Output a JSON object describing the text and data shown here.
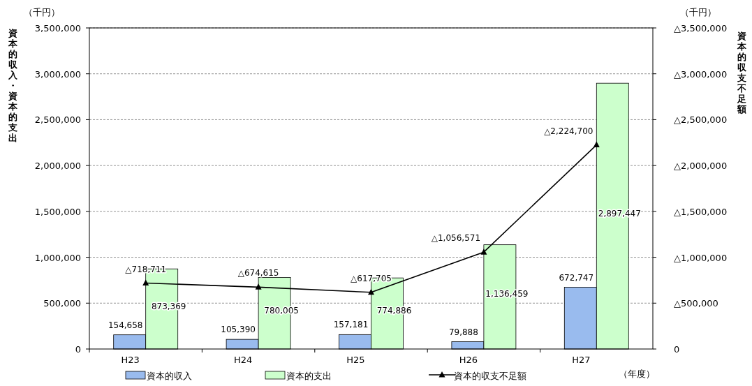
{
  "chart_data": {
    "type": "bar",
    "categories": [
      "H23",
      "H24",
      "H25",
      "H26",
      "H27"
    ],
    "ylabel": "資本的収入・資本的支出",
    "y2label": "資本的収支不足額",
    "xlabel": "（年度）",
    "annotations": [
      "（千円）",
      "（千円）"
    ],
    "ylim": [
      0,
      3500000
    ],
    "yticks": [
      {
        "value": 0,
        "label": "0"
      },
      {
        "value": 500000,
        "label": "500,000"
      },
      {
        "value": 1000000,
        "label": "1,000,000"
      },
      {
        "value": 1500000,
        "label": "1,500,000"
      },
      {
        "value": 2000000,
        "label": "2,000,000"
      },
      {
        "value": 2500000,
        "label": "2,500,000"
      },
      {
        "value": 3000000,
        "label": "3,000,000"
      },
      {
        "value": 3500000,
        "label": "3,500,000"
      }
    ],
    "y2lim": [
      0,
      3500000
    ],
    "y2ticks": [
      {
        "value": 0,
        "label": "0"
      },
      {
        "value": 500000,
        "label": "△500,000"
      },
      {
        "value": 1000000,
        "label": "△1,000,000"
      },
      {
        "value": 1500000,
        "label": "△1,500,000"
      },
      {
        "value": 2000000,
        "label": "△2,000,000"
      },
      {
        "value": 2500000,
        "label": "△2,500,000"
      },
      {
        "value": 3000000,
        "label": "△3,000,000"
      },
      {
        "value": 3500000,
        "label": "△3,500,000"
      }
    ],
    "grid": "y",
    "legend": "bottom",
    "marker": "triangle",
    "series": [
      {
        "name": "資本的収入",
        "color": "#99bbee",
        "values": [
          154658,
          105390,
          157181,
          79888,
          672747
        ],
        "value_labels": [
          "154,658",
          "105,390",
          "157,181",
          "79,888",
          "672,747"
        ]
      },
      {
        "name": "資本的支出",
        "color": "#ccffcc",
        "values": [
          873369,
          780005,
          774886,
          1136459,
          2897447
        ],
        "value_labels": [
          "873,369",
          "780,005",
          "774,886",
          "1,136,459",
          "2,897,447"
        ]
      },
      {
        "name": "資本的収支不足額",
        "type": "line",
        "axis": "y2",
        "color": "#000000",
        "values": [
          718711,
          674615,
          617705,
          1056571,
          2224700
        ],
        "value_labels": [
          "△718,711",
          "△674,615",
          "△617,705",
          "△1,056,571",
          "△2,224,700"
        ]
      }
    ]
  }
}
